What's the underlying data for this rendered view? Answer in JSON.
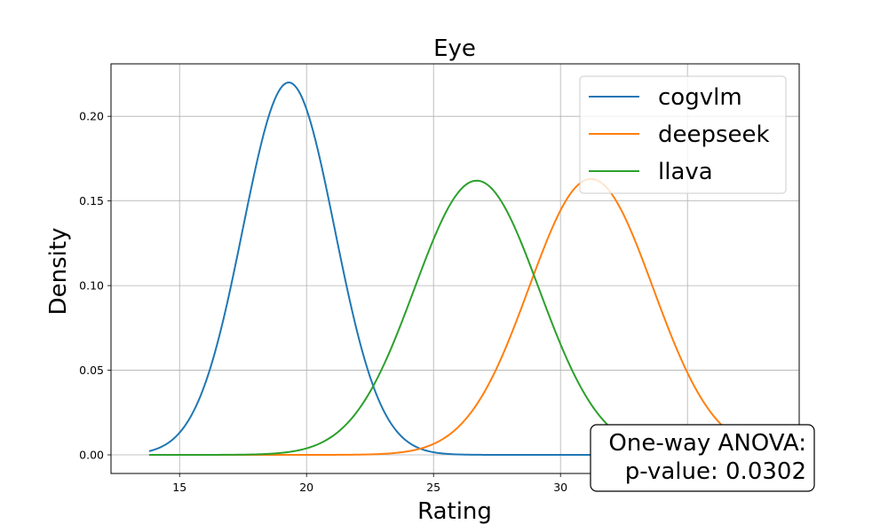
{
  "chart_data": {
    "type": "line",
    "title": "Eye",
    "xlabel": "Rating",
    "ylabel": "Density",
    "xlim": [
      12.3,
      39.4
    ],
    "ylim": [
      -0.011,
      0.231
    ],
    "xticks": [
      15,
      20,
      25,
      30,
      35
    ],
    "xtick_labels": [
      "15",
      "20",
      "25",
      "30",
      "35"
    ],
    "yticks": [
      0.0,
      0.05,
      0.1,
      0.15,
      0.2
    ],
    "ytick_labels": [
      "0.00",
      "0.05",
      "0.10",
      "0.15",
      "0.20"
    ],
    "grid": true,
    "legend_position": "top-right",
    "x_range": [
      13.8,
      38.0
    ],
    "series": [
      {
        "name": "cogvlm",
        "color": "#1f77b4",
        "distribution": "normal",
        "mean": 19.3,
        "std": 1.81,
        "peak_density": 0.22
      },
      {
        "name": "deepseek",
        "color": "#ff7f0e",
        "distribution": "normal",
        "mean": 31.2,
        "std": 2.44,
        "peak_density": 0.163
      },
      {
        "name": "llava",
        "color": "#2ca02c",
        "distribution": "normal",
        "mean": 26.7,
        "std": 2.45,
        "peak_density": 0.162
      }
    ],
    "annotation": {
      "line1": "One-way ANOVA:",
      "line2": "p-value: 0.0302",
      "position": "bottom-right"
    }
  }
}
